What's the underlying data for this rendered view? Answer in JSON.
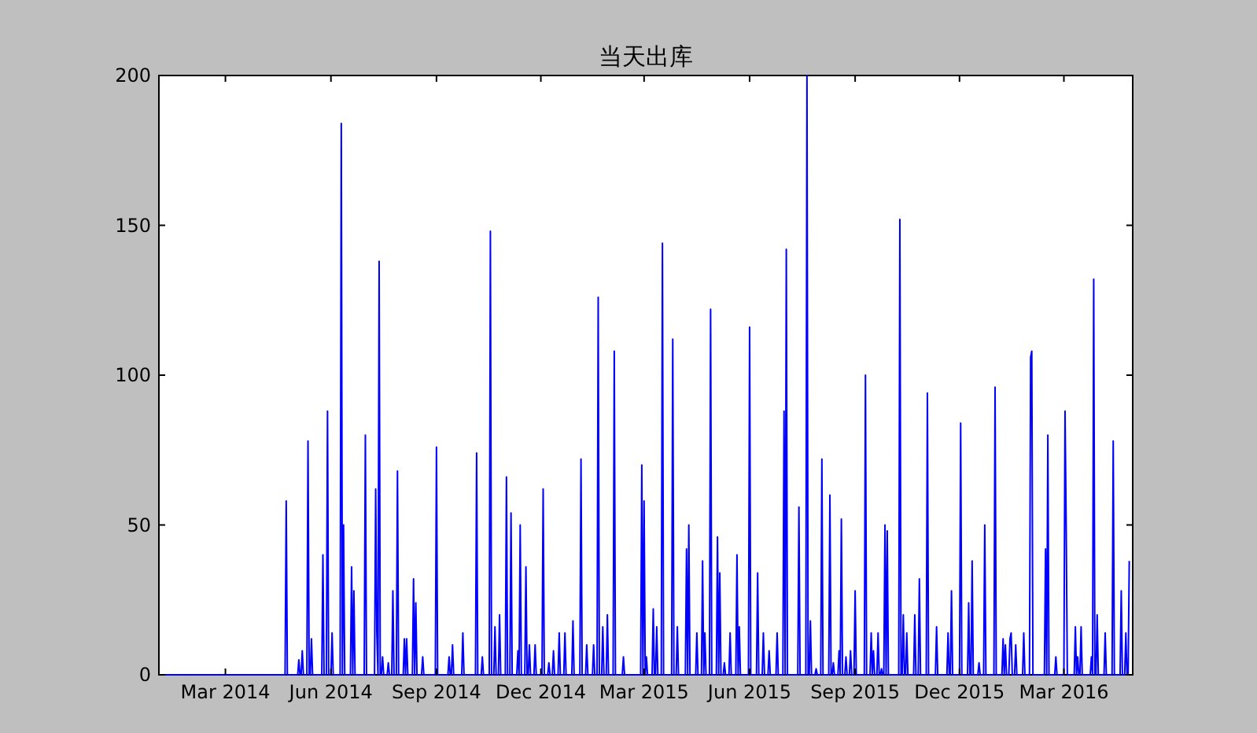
{
  "chart_data": {
    "type": "line",
    "title": "当天出库",
    "x": [
      "2014-01-02",
      "2014-04-22",
      "2014-04-23",
      "2014-04-24",
      "2014-05-03",
      "2014-05-04",
      "2014-05-05",
      "2014-05-06",
      "2014-05-07",
      "2014-05-08",
      "2014-05-11",
      "2014-05-12",
      "2014-05-13",
      "2014-05-14",
      "2014-05-15",
      "2014-05-16",
      "2014-05-24",
      "2014-05-25",
      "2014-05-26",
      "2014-05-28",
      "2014-05-29",
      "2014-05-30",
      "2014-06-01",
      "2014-06-02",
      "2014-06-03",
      "2014-06-09",
      "2014-06-10",
      "2014-06-11",
      "2014-06-12",
      "2014-06-13",
      "2014-06-18",
      "2014-06-19",
      "2014-06-20",
      "2014-06-21",
      "2014-06-22",
      "2014-06-30",
      "2014-07-01",
      "2014-07-02",
      "2014-07-09",
      "2014-07-10",
      "2014-07-11",
      "2014-07-12",
      "2014-07-13",
      "2014-07-14",
      "2014-07-15",
      "2014-07-16",
      "2014-07-17",
      "2014-07-20",
      "2014-07-21",
      "2014-07-22",
      "2014-07-24",
      "2014-07-25",
      "2014-07-26",
      "2014-07-28",
      "2014-07-29",
      "2014-07-30",
      "2014-08-03",
      "2014-08-04",
      "2014-08-05",
      "2014-08-06",
      "2014-08-07",
      "2014-08-11",
      "2014-08-12",
      "2014-08-13",
      "2014-08-14",
      "2014-08-15",
      "2014-08-19",
      "2014-08-20",
      "2014-08-21",
      "2014-08-31",
      "2014-09-01",
      "2014-09-02",
      "2014-09-11",
      "2014-09-12",
      "2014-09-13",
      "2014-09-14",
      "2014-09-15",
      "2014-09-16",
      "2014-09-23",
      "2014-09-24",
      "2014-09-25",
      "2014-10-05",
      "2014-10-06",
      "2014-10-07",
      "2014-10-10",
      "2014-10-11",
      "2014-10-12",
      "2014-10-17",
      "2014-10-18",
      "2014-10-19",
      "2014-10-21",
      "2014-10-22",
      "2014-10-23",
      "2014-10-25",
      "2014-10-26",
      "2014-10-27",
      "2014-10-31",
      "2014-11-01",
      "2014-11-02",
      "2014-11-04",
      "2014-11-05",
      "2014-11-06",
      "2014-11-10",
      "2014-11-11",
      "2014-11-12",
      "2014-11-13",
      "2014-11-14",
      "2014-11-17",
      "2014-11-18",
      "2014-11-19",
      "2014-11-20",
      "2014-11-21",
      "2014-11-22",
      "2014-11-25",
      "2014-11-26",
      "2014-11-27",
      "2014-12-02",
      "2014-12-03",
      "2014-12-04",
      "2014-12-07",
      "2014-12-08",
      "2014-12-09",
      "2014-12-11",
      "2014-12-12",
      "2014-12-13",
      "2014-12-16",
      "2014-12-17",
      "2014-12-18",
      "2014-12-21",
      "2014-12-22",
      "2014-12-23",
      "2014-12-28",
      "2014-12-29",
      "2014-12-30",
      "2015-01-04",
      "2015-01-05",
      "2015-01-06",
      "2015-01-09",
      "2015-01-10",
      "2015-01-11",
      "2015-01-15",
      "2015-01-16",
      "2015-01-17",
      "2015-01-19",
      "2015-01-20",
      "2015-01-21",
      "2015-01-23",
      "2015-01-24",
      "2015-01-25",
      "2015-01-27",
      "2015-01-28",
      "2015-01-29",
      "2015-02-02",
      "2015-02-03",
      "2015-02-04",
      "2015-02-10",
      "2015-02-11",
      "2015-02-12",
      "2015-02-26",
      "2015-02-27",
      "2015-02-28",
      "2015-03-01",
      "2015-03-02",
      "2015-03-03",
      "2015-03-04",
      "2015-03-08",
      "2015-03-09",
      "2015-03-10",
      "2015-03-11",
      "2015-03-12",
      "2015-03-13",
      "2015-03-16",
      "2015-03-17",
      "2015-03-18",
      "2015-03-25",
      "2015-03-26",
      "2015-03-27",
      "2015-03-29",
      "2015-03-30",
      "2015-03-31",
      "2015-04-06",
      "2015-04-07",
      "2015-04-08",
      "2015-04-09",
      "2015-04-10",
      "2015-04-15",
      "2015-04-16",
      "2015-04-17",
      "2015-04-20",
      "2015-04-21",
      "2015-04-22",
      "2015-04-23",
      "2015-04-24",
      "2015-04-27",
      "2015-04-28",
      "2015-04-29",
      "2015-05-03",
      "2015-05-04",
      "2015-05-05",
      "2015-05-06",
      "2015-05-07",
      "2015-05-09",
      "2015-05-10",
      "2015-05-11",
      "2015-05-14",
      "2015-05-15",
      "2015-05-16",
      "2015-05-20",
      "2015-05-21",
      "2015-05-22",
      "2015-05-23",
      "2015-05-24",
      "2015-05-31",
      "2015-06-01",
      "2015-06-02",
      "2015-06-07",
      "2015-06-08",
      "2015-06-09",
      "2015-06-12",
      "2015-06-13",
      "2015-06-14",
      "2015-06-17",
      "2015-06-18",
      "2015-06-19",
      "2015-06-24",
      "2015-06-25",
      "2015-06-26",
      "2015-06-30",
      "2015-07-01",
      "2015-07-02",
      "2015-07-03",
      "2015-07-04",
      "2015-07-13",
      "2015-07-14",
      "2015-07-15",
      "2015-07-20",
      "2015-07-21",
      "2015-07-22",
      "2015-07-23",
      "2015-07-24",
      "2015-07-25",
      "2015-07-28",
      "2015-07-29",
      "2015-07-30",
      "2015-08-02",
      "2015-08-03",
      "2015-08-04",
      "2015-08-09",
      "2015-08-10",
      "2015-08-11",
      "2015-08-12",
      "2015-08-13",
      "2015-08-14",
      "2015-08-17",
      "2015-08-18",
      "2015-08-19",
      "2015-08-20",
      "2015-08-21",
      "2015-08-23",
      "2015-08-24",
      "2015-08-25",
      "2015-08-27",
      "2015-08-28",
      "2015-08-29",
      "2015-08-31",
      "2015-09-01",
      "2015-09-02",
      "2015-09-09",
      "2015-09-10",
      "2015-09-11",
      "2015-09-14",
      "2015-09-15",
      "2015-09-16",
      "2015-09-17",
      "2015-09-18",
      "2015-09-20",
      "2015-09-21",
      "2015-09-22",
      "2015-09-23",
      "2015-09-24",
      "2015-09-25",
      "2015-09-26",
      "2015-09-27",
      "2015-09-28",
      "2015-09-29",
      "2015-09-30",
      "2015-10-09",
      "2015-10-10",
      "2015-10-11",
      "2015-10-12",
      "2015-10-13",
      "2015-10-14",
      "2015-10-15",
      "2015-10-16",
      "2015-10-17",
      "2015-10-22",
      "2015-10-23",
      "2015-10-24",
      "2015-10-26",
      "2015-10-27",
      "2015-10-28",
      "2015-11-02",
      "2015-11-03",
      "2015-11-04",
      "2015-11-10",
      "2015-11-11",
      "2015-11-12",
      "2015-11-20",
      "2015-11-21",
      "2015-11-22",
      "2015-11-23",
      "2015-11-24",
      "2015-11-25",
      "2015-12-01",
      "2015-12-02",
      "2015-12-03",
      "2015-12-08",
      "2015-12-09",
      "2015-12-10",
      "2015-12-11",
      "2015-12-12",
      "2015-12-13",
      "2015-12-17",
      "2015-12-18",
      "2015-12-19",
      "2015-12-22",
      "2015-12-23",
      "2015-12-24",
      "2015-12-31",
      "2016-01-01",
      "2016-01-02",
      "2016-01-07",
      "2016-01-08",
      "2016-01-09",
      "2016-01-10",
      "2016-01-11",
      "2016-01-13",
      "2016-01-14",
      "2016-01-15",
      "2016-01-16",
      "2016-01-18",
      "2016-01-19",
      "2016-01-20",
      "2016-01-25",
      "2016-01-26",
      "2016-01-27",
      "2016-01-31",
      "2016-02-01",
      "2016-02-02",
      "2016-02-03",
      "2016-02-13",
      "2016-02-14",
      "2016-02-15",
      "2016-02-16",
      "2016-02-17",
      "2016-02-22",
      "2016-02-23",
      "2016-02-24",
      "2016-03-01",
      "2016-03-02",
      "2016-03-03",
      "2016-03-04",
      "2016-03-10",
      "2016-03-11",
      "2016-03-12",
      "2016-03-13",
      "2016-03-14",
      "2016-03-15",
      "2016-03-16",
      "2016-03-17",
      "2016-03-24",
      "2016-03-25",
      "2016-03-26",
      "2016-03-27",
      "2016-03-28",
      "2016-03-29",
      "2016-03-30",
      "2016-03-31",
      "2016-04-05",
      "2016-04-06",
      "2016-04-07",
      "2016-04-12",
      "2016-04-13",
      "2016-04-14",
      "2016-04-19",
      "2016-04-20",
      "2016-04-21",
      "2016-04-23",
      "2016-04-24",
      "2016-04-25",
      "2016-04-26",
      "2016-04-27"
    ],
    "series": [
      {
        "color": "#0000ff",
        "values": [
          0,
          0,
          58,
          0,
          0,
          5,
          0,
          0,
          8,
          0,
          0,
          78,
          0,
          0,
          12,
          0,
          0,
          40,
          0,
          0,
          88,
          0,
          0,
          14,
          0,
          0,
          184,
          0,
          50,
          0,
          0,
          36,
          0,
          28,
          0,
          0,
          80,
          0,
          0,
          62,
          14,
          0,
          138,
          0,
          0,
          6,
          0,
          0,
          4,
          0,
          0,
          28,
          0,
          0,
          68,
          0,
          0,
          12,
          0,
          12,
          0,
          0,
          32,
          0,
          24,
          0,
          0,
          6,
          0,
          0,
          76,
          0,
          0,
          6,
          0,
          0,
          10,
          0,
          0,
          14,
          0,
          0,
          74,
          0,
          0,
          6,
          0,
          0,
          148,
          0,
          0,
          16,
          0,
          0,
          20,
          0,
          0,
          66,
          0,
          0,
          54,
          0,
          0,
          8,
          0,
          50,
          0,
          0,
          36,
          0,
          0,
          10,
          0,
          0,
          10,
          0,
          0,
          62,
          0,
          0,
          4,
          0,
          0,
          8,
          0,
          0,
          14,
          0,
          0,
          14,
          0,
          0,
          18,
          0,
          0,
          72,
          0,
          0,
          10,
          0,
          0,
          10,
          0,
          0,
          126,
          0,
          0,
          16,
          0,
          0,
          20,
          0,
          0,
          108,
          0,
          0,
          6,
          0,
          0,
          70,
          0,
          58,
          0,
          6,
          0,
          0,
          22,
          0,
          0,
          16,
          0,
          0,
          144,
          0,
          0,
          112,
          0,
          0,
          16,
          0,
          0,
          42,
          0,
          50,
          0,
          0,
          14,
          0,
          0,
          38,
          0,
          14,
          0,
          0,
          122,
          0,
          0,
          46,
          0,
          34,
          0,
          0,
          4,
          0,
          0,
          14,
          0,
          0,
          40,
          0,
          16,
          0,
          0,
          116,
          0,
          0,
          34,
          0,
          0,
          14,
          0,
          0,
          8,
          0,
          0,
          14,
          0,
          0,
          88,
          0,
          142,
          0,
          0,
          56,
          0,
          0,
          200,
          0,
          0,
          18,
          0,
          0,
          2,
          0,
          0,
          72,
          0,
          0,
          60,
          0,
          0,
          4,
          0,
          0,
          8,
          0,
          52,
          0,
          0,
          6,
          0,
          0,
          8,
          0,
          0,
          28,
          0,
          0,
          100,
          0,
          0,
          14,
          0,
          8,
          0,
          0,
          14,
          0,
          0,
          2,
          0,
          0,
          50,
          0,
          48,
          0,
          0,
          152,
          0,
          0,
          20,
          0,
          0,
          14,
          0,
          0,
          20,
          0,
          0,
          32,
          0,
          0,
          94,
          0,
          0,
          16,
          0,
          0,
          14,
          0,
          0,
          28,
          0,
          0,
          84,
          0,
          0,
          24,
          0,
          0,
          38,
          0,
          0,
          4,
          0,
          0,
          50,
          0,
          0,
          96,
          0,
          0,
          12,
          0,
          10,
          0,
          0,
          12,
          14,
          0,
          0,
          10,
          0,
          0,
          14,
          0,
          0,
          106,
          108,
          0,
          0,
          42,
          0,
          80,
          0,
          0,
          6,
          0,
          0,
          88,
          50,
          0,
          0,
          16,
          0,
          6,
          0,
          0,
          16,
          0,
          0,
          6,
          0,
          132,
          0,
          0,
          20,
          0,
          0,
          14,
          0,
          0,
          78,
          0,
          0,
          28,
          0,
          0,
          14,
          0,
          0,
          38
        ]
      }
    ],
    "xlim": [
      "2014-01-02",
      "2016-04-30"
    ],
    "xticks": [
      {
        "value": "2014-03-01",
        "label": "Mar 2014"
      },
      {
        "value": "2014-06-01",
        "label": "Jun 2014"
      },
      {
        "value": "2014-09-01",
        "label": "Sep 2014"
      },
      {
        "value": "2014-12-01",
        "label": "Dec 2014"
      },
      {
        "value": "2015-03-01",
        "label": "Mar 2015"
      },
      {
        "value": "2015-06-01",
        "label": "Jun 2015"
      },
      {
        "value": "2015-09-01",
        "label": "Sep 2015"
      },
      {
        "value": "2015-12-01",
        "label": "Dec 2015"
      },
      {
        "value": "2016-03-01",
        "label": "Mar 2016"
      }
    ],
    "ylim": [
      0,
      200
    ],
    "yticks": [
      0,
      50,
      100,
      150,
      200
    ],
    "grid": false,
    "line_style": "solid"
  }
}
